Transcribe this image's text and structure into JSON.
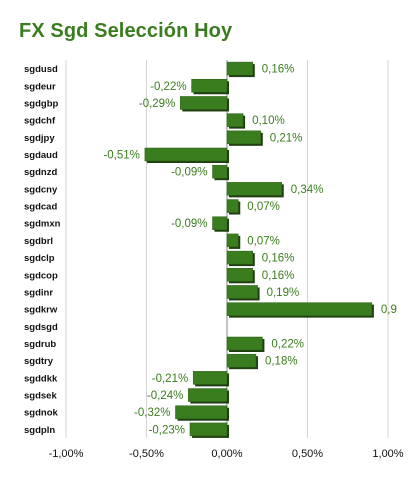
{
  "chart_data": {
    "type": "bar",
    "orientation": "horizontal",
    "title": "FX Sgd Selección Hoy",
    "categories": [
      "sgdusd",
      "sgdeur",
      "sgdgbp",
      "sgdchf",
      "sgdjpy",
      "sgdaud",
      "sgdnzd",
      "sgdcny",
      "sgdcad",
      "sgdmxn",
      "sgdbrl",
      "sgdclp",
      "sgdcop",
      "sgdinr",
      "sgdkrw",
      "sgdsgd",
      "sgdrub",
      "sgdtry",
      "sgddkk",
      "sgdsek",
      "sgdnok",
      "sgdpln"
    ],
    "values": [
      0.16,
      -0.22,
      -0.29,
      0.1,
      0.21,
      -0.51,
      -0.09,
      0.34,
      0.07,
      -0.09,
      0.07,
      0.16,
      0.16,
      0.19,
      0.9,
      null,
      0.22,
      0.18,
      -0.21,
      -0.24,
      -0.32,
      -0.23
    ],
    "value_labels": [
      "0,16%",
      "-0,22%",
      "-0,29%",
      "0,10%",
      "0,21%",
      "-0,51%",
      "-0,09%",
      "0,34%",
      "0,07%",
      "-0,09%",
      "0,07%",
      "0,16%",
      "0,16%",
      "0,19%",
      "0,9",
      "",
      "0,22%",
      "0,18%",
      "-0,21%",
      "-0,24%",
      "-0,32%",
      "-0,23%"
    ],
    "xlim": [
      -1.0,
      1.0
    ],
    "x_ticks": [
      -1.0,
      -0.5,
      0.0,
      0.5,
      1.0
    ],
    "x_tick_labels": [
      "-1,00%",
      "-0,50%",
      "0,00%",
      "0,50%",
      "1,00%"
    ],
    "grid": true,
    "colors": {
      "bar": "#3a7d1e",
      "bar_shadow": "#1f3f10",
      "label": "#3a7d1e",
      "grid": "#d4d4d4",
      "zero_line": "#888888"
    }
  }
}
